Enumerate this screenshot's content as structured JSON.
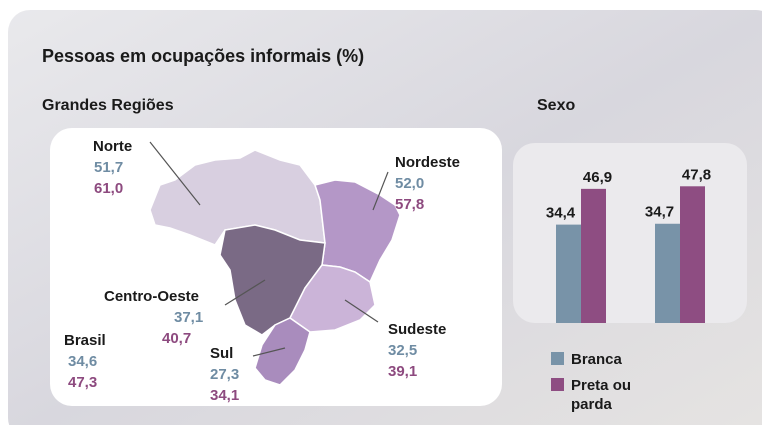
{
  "title": "Pessoas em ocupações informais (%)",
  "regions_title": "Grandes Regiões",
  "regions": [
    {
      "name": "Norte",
      "values": [
        "51,7",
        "61,0"
      ]
    },
    {
      "name": "Nordeste",
      "values": [
        "52,0",
        "57,8"
      ]
    },
    {
      "name": "Centro-Oeste",
      "values": [
        "37,1",
        "40,7"
      ]
    },
    {
      "name": "Sudeste",
      "values": [
        "32,5",
        "39,1"
      ]
    },
    {
      "name": "Sul",
      "values": [
        "27,3",
        "34,1"
      ]
    },
    {
      "name": "Brasil",
      "values": [
        "34,6",
        "47,3"
      ]
    }
  ],
  "chart_data": {
    "type": "bar",
    "title": "Sexo",
    "categories": [
      null,
      null
    ],
    "series": [
      {
        "name": "Branca",
        "color": "#7893a8",
        "values": [
          34.4,
          34.7
        ],
        "value_labels": [
          "34,4",
          "34,7"
        ]
      },
      {
        "name": "Preta ou parda",
        "color": "#8e4d82",
        "values": [
          46.9,
          47.8
        ],
        "value_labels": [
          "46,9",
          "47,8"
        ]
      }
    ],
    "ylim": [
      0,
      50
    ]
  }
}
